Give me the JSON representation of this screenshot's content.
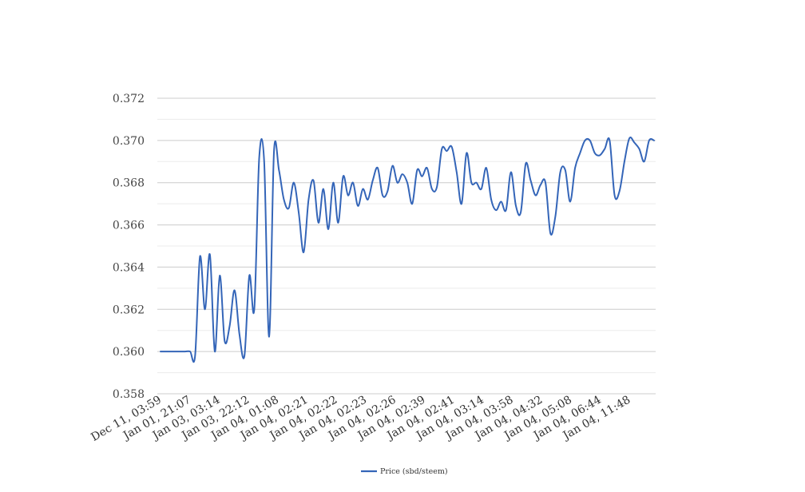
{
  "chart_data": {
    "type": "line",
    "title": "",
    "xlabel": "",
    "ylabel": "",
    "ylim": [
      0.358,
      0.372
    ],
    "y_ticks": [
      "0.358",
      "0.360",
      "0.362",
      "0.364",
      "0.366",
      "0.368",
      "0.370",
      "0.372"
    ],
    "x_tick_labels": [
      "Dec 11, 03:59",
      "Jan 01, 21:07",
      "Jan 03, 03:14",
      "Jan 03, 22:12",
      "Jan 04, 01:08",
      "Jan 04, 02:21",
      "Jan 04, 02:22",
      "Jan 04, 02:23",
      "Jan 04, 02:26",
      "Jan 04, 02:39",
      "Jan 04, 02:41",
      "Jan 04, 03:14",
      "Jan 04, 03:58",
      "Jan 04, 04:32",
      "Jan 04, 05:08",
      "Jan 04, 06:44",
      "Jan 04, 11:48"
    ],
    "grid": true,
    "legend": "bottom-center",
    "colors": {
      "series": "#3465b8",
      "grid_major": "#cccccc",
      "grid_minor": "#ebebeb"
    },
    "series": [
      {
        "name": "Price (sbd/steem)",
        "values": [
          0.36,
          0.36,
          0.36,
          0.36,
          0.36,
          0.36,
          0.36,
          0.3598,
          0.3645,
          0.362,
          0.3646,
          0.36,
          0.3636,
          0.3605,
          0.3612,
          0.3629,
          0.3608,
          0.3598,
          0.3636,
          0.362,
          0.3692,
          0.369,
          0.3607,
          0.3695,
          0.3686,
          0.3672,
          0.3668,
          0.368,
          0.3666,
          0.3647,
          0.3672,
          0.3681,
          0.3661,
          0.3677,
          0.3658,
          0.368,
          0.3661,
          0.3683,
          0.3674,
          0.368,
          0.3669,
          0.3677,
          0.3672,
          0.3681,
          0.3687,
          0.3674,
          0.3676,
          0.3688,
          0.368,
          0.3684,
          0.368,
          0.367,
          0.3686,
          0.3683,
          0.3687,
          0.3677,
          0.3678,
          0.3696,
          0.3695,
          0.3697,
          0.3685,
          0.367,
          0.3694,
          0.368,
          0.368,
          0.3677,
          0.3687,
          0.3672,
          0.3667,
          0.3671,
          0.3667,
          0.3685,
          0.3669,
          0.3666,
          0.3689,
          0.3681,
          0.3674,
          0.3679,
          0.368,
          0.3656,
          0.3664,
          0.3685,
          0.3686,
          0.3671,
          0.3687,
          0.3694,
          0.37,
          0.37,
          0.3694,
          0.3693,
          0.3696,
          0.37,
          0.3674,
          0.3676,
          0.369,
          0.3701,
          0.3699,
          0.3696,
          0.369,
          0.37,
          0.37
        ]
      }
    ]
  }
}
